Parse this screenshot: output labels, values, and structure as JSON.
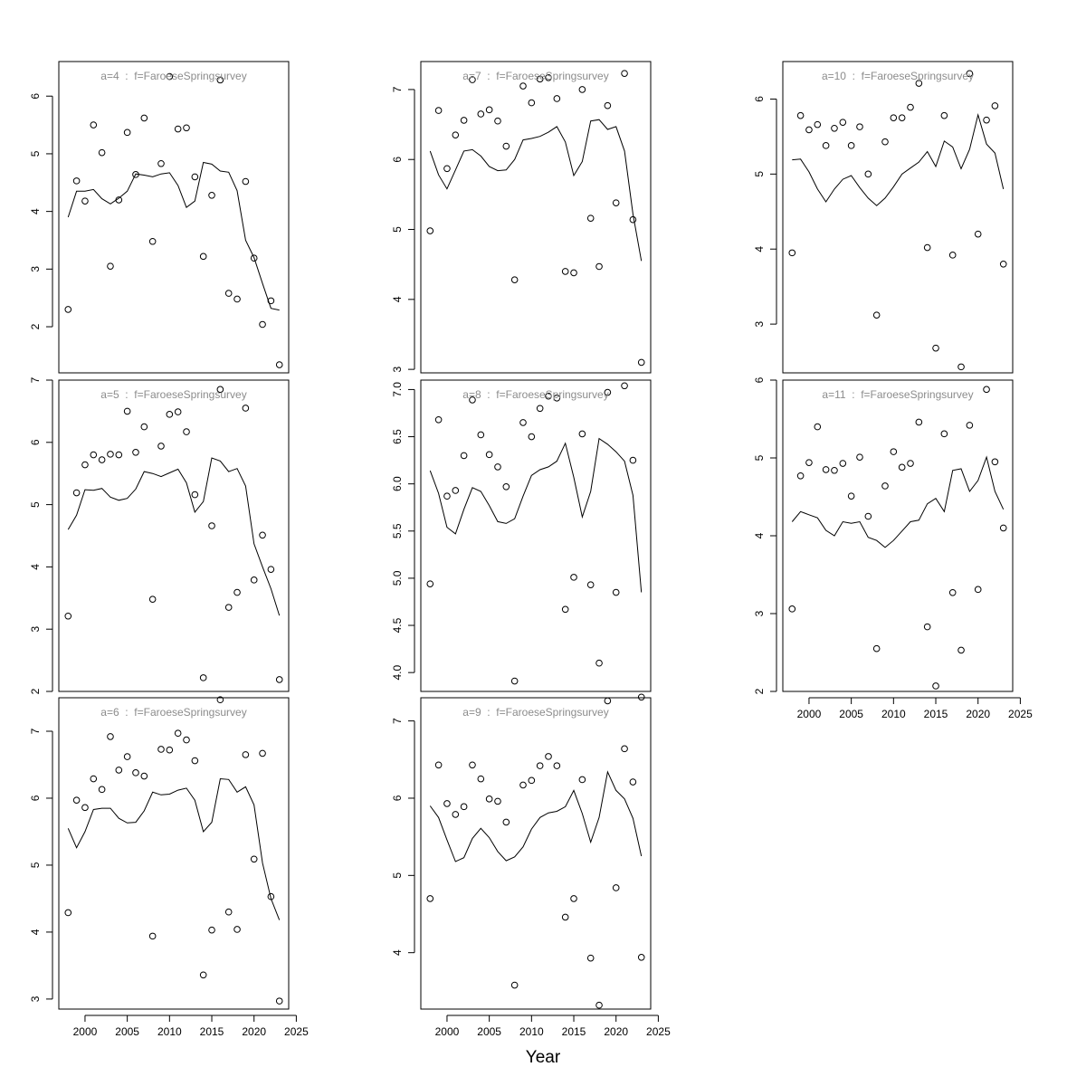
{
  "xlabel": "Year",
  "colors": {
    "panel_title": "#8c8c8c",
    "axis": "#000000",
    "line": "#000000",
    "points": "#000000"
  },
  "chart_data": [
    {
      "type": "scatter",
      "title": "a=4  :  f=FaroeseSpringsurvey",
      "x_ticks": [
        2000,
        2005,
        2010,
        2015,
        2020,
        2025
      ],
      "y_ticks": [
        2,
        3,
        4,
        5,
        6
      ],
      "ylim": [
        1.2,
        6.6
      ],
      "show_x_axis": false,
      "observed": {
        "x": [
          1998,
          1999,
          2000,
          2001,
          2002,
          2003,
          2004,
          2005,
          2006,
          2007,
          2008,
          2009,
          2010,
          2011,
          2012,
          2013,
          2014,
          2015,
          2016,
          2017,
          2018,
          2019,
          2020,
          2021,
          2022,
          2023
        ],
        "y": [
          2.3,
          4.53,
          4.18,
          5.5,
          5.02,
          3.05,
          4.2,
          5.37,
          4.64,
          5.62,
          3.48,
          4.83,
          6.34,
          5.43,
          5.45,
          4.6,
          3.22,
          4.28,
          6.28,
          2.58,
          2.48,
          4.52,
          3.19,
          2.04,
          2.45,
          1.34
        ]
      },
      "fitted": {
        "x": [
          1998,
          1999,
          2000,
          2001,
          2002,
          2003,
          2004,
          2005,
          2006,
          2007,
          2008,
          2009,
          2010,
          2011,
          2012,
          2013,
          2014,
          2015,
          2016,
          2017,
          2018,
          2019,
          2020,
          2021,
          2022,
          2023
        ],
        "y": [
          3.9,
          4.35,
          4.35,
          4.38,
          4.22,
          4.13,
          4.23,
          4.35,
          4.65,
          4.63,
          4.6,
          4.65,
          4.67,
          4.45,
          4.07,
          4.18,
          4.85,
          4.82,
          4.7,
          4.68,
          4.36,
          3.5,
          3.2,
          2.75,
          2.32,
          2.29
        ]
      }
    },
    {
      "type": "scatter",
      "title": "a=7  :  f=FaroeseSpringsurvey",
      "x_ticks": [
        2000,
        2005,
        2010,
        2015,
        2020,
        2025
      ],
      "y_ticks": [
        3,
        4,
        5,
        6,
        7
      ],
      "ylim": [
        2.95,
        7.4
      ],
      "show_x_axis": false,
      "observed": {
        "x": [
          1998,
          1999,
          2000,
          2001,
          2002,
          2003,
          2004,
          2005,
          2006,
          2007,
          2008,
          2009,
          2010,
          2011,
          2012,
          2013,
          2014,
          2015,
          2016,
          2017,
          2018,
          2019,
          2020,
          2021,
          2022,
          2023
        ],
        "y": [
          4.98,
          6.7,
          5.87,
          6.35,
          6.56,
          7.14,
          6.65,
          6.71,
          6.55,
          6.19,
          4.28,
          7.05,
          6.81,
          7.15,
          7.17,
          6.87,
          4.4,
          4.38,
          7.0,
          5.16,
          4.47,
          6.77,
          5.38,
          7.23,
          5.14,
          3.1
        ]
      },
      "fitted": {
        "x": [
          1998,
          1999,
          2000,
          2001,
          2002,
          2003,
          2004,
          2005,
          2006,
          2007,
          2008,
          2009,
          2010,
          2011,
          2012,
          2013,
          2014,
          2015,
          2016,
          2017,
          2018,
          2019,
          2020,
          2021,
          2022,
          2023
        ],
        "y": [
          6.12,
          5.78,
          5.58,
          5.85,
          6.12,
          6.14,
          6.05,
          5.9,
          5.84,
          5.85,
          6.0,
          6.28,
          6.3,
          6.33,
          6.39,
          6.47,
          6.25,
          5.77,
          5.97,
          6.55,
          6.57,
          6.43,
          6.47,
          6.12,
          5.22,
          4.55
        ]
      }
    },
    {
      "type": "scatter",
      "title": "a=10  :  f=FaroeseSpringsurvey",
      "x_ticks": [
        2000,
        2005,
        2010,
        2015,
        2020,
        2025
      ],
      "y_ticks": [
        3,
        4,
        5,
        6
      ],
      "ylim": [
        2.35,
        6.5
      ],
      "show_x_axis": false,
      "observed": {
        "x": [
          1998,
          1999,
          2000,
          2001,
          2002,
          2003,
          2004,
          2005,
          2006,
          2007,
          2008,
          2009,
          2010,
          2011,
          2012,
          2013,
          2014,
          2015,
          2016,
          2017,
          2018,
          2019,
          2020,
          2021,
          2022,
          2023
        ],
        "y": [
          3.95,
          5.78,
          5.59,
          5.66,
          5.38,
          5.61,
          5.69,
          5.38,
          5.63,
          5.0,
          3.12,
          5.43,
          5.75,
          5.75,
          5.89,
          6.21,
          4.02,
          2.68,
          5.78,
          3.92,
          2.43,
          6.34,
          4.2,
          5.72,
          5.91,
          3.8
        ]
      },
      "fitted": {
        "x": [
          1998,
          1999,
          2000,
          2001,
          2002,
          2003,
          2004,
          2005,
          2006,
          2007,
          2008,
          2009,
          2010,
          2011,
          2012,
          2013,
          2014,
          2015,
          2016,
          2017,
          2018,
          2019,
          2020,
          2021,
          2022,
          2023
        ],
        "y": [
          5.19,
          5.2,
          5.03,
          4.8,
          4.63,
          4.8,
          4.93,
          4.98,
          4.82,
          4.68,
          4.58,
          4.68,
          4.83,
          5.0,
          5.08,
          5.16,
          5.3,
          5.1,
          5.44,
          5.36,
          5.07,
          5.33,
          5.79,
          5.4,
          5.28,
          4.8
        ]
      }
    },
    {
      "type": "scatter",
      "title": "a=5  :  f=FaroeseSpringsurvey",
      "x_ticks": [
        2000,
        2005,
        2010,
        2015,
        2020,
        2025
      ],
      "y_ticks": [
        2,
        3,
        4,
        5,
        6,
        7
      ],
      "ylim": [
        2.0,
        7.0
      ],
      "show_x_axis": false,
      "observed": {
        "x": [
          1998,
          1999,
          2000,
          2001,
          2002,
          2003,
          2004,
          2005,
          2006,
          2007,
          2008,
          2009,
          2010,
          2011,
          2012,
          2013,
          2014,
          2015,
          2016,
          2017,
          2018,
          2019,
          2020,
          2021,
          2022,
          2023
        ],
        "y": [
          3.21,
          5.19,
          5.64,
          5.8,
          5.72,
          5.81,
          5.8,
          6.5,
          5.84,
          6.25,
          3.48,
          5.94,
          6.45,
          6.49,
          6.17,
          5.16,
          2.22,
          4.66,
          6.85,
          3.35,
          3.59,
          6.55,
          3.79,
          4.51,
          3.96,
          2.19
        ]
      },
      "fitted": {
        "x": [
          1998,
          1999,
          2000,
          2001,
          2002,
          2003,
          2004,
          2005,
          2006,
          2007,
          2008,
          2009,
          2010,
          2011,
          2012,
          2013,
          2014,
          2015,
          2016,
          2017,
          2018,
          2019,
          2020,
          2021,
          2022,
          2023
        ],
        "y": [
          4.6,
          4.83,
          5.24,
          5.23,
          5.26,
          5.12,
          5.07,
          5.1,
          5.25,
          5.53,
          5.5,
          5.45,
          5.51,
          5.57,
          5.35,
          4.88,
          5.05,
          5.75,
          5.7,
          5.53,
          5.58,
          5.3,
          4.37,
          4.0,
          3.65,
          3.22
        ]
      }
    },
    {
      "type": "scatter",
      "title": "a=8  :  f=FaroeseSpringsurvey",
      "x_ticks": [
        2000,
        2005,
        2010,
        2015,
        2020,
        2025
      ],
      "y_ticks": [
        4.0,
        4.5,
        5.0,
        5.5,
        6.0,
        6.5,
        7.0
      ],
      "ylim": [
        3.8,
        7.1
      ],
      "show_x_axis": false,
      "observed": {
        "x": [
          1998,
          1999,
          2000,
          2001,
          2002,
          2003,
          2004,
          2005,
          2006,
          2007,
          2008,
          2009,
          2010,
          2011,
          2012,
          2013,
          2014,
          2015,
          2016,
          2017,
          2018,
          2019,
          2020,
          2021,
          2022,
          2023
        ],
        "y": [
          4.94,
          6.68,
          5.87,
          5.93,
          6.3,
          6.89,
          6.52,
          6.31,
          6.18,
          5.97,
          3.91,
          6.65,
          6.5,
          6.8,
          6.93,
          6.91,
          4.67,
          5.01,
          6.53,
          4.93,
          4.1,
          6.97,
          4.85,
          7.04,
          6.25,
          3.74
        ]
      },
      "fitted": {
        "x": [
          1998,
          1999,
          2000,
          2001,
          2002,
          2003,
          2004,
          2005,
          2006,
          2007,
          2008,
          2009,
          2010,
          2011,
          2012,
          2013,
          2014,
          2015,
          2016,
          2017,
          2018,
          2019,
          2020,
          2021,
          2022,
          2023
        ],
        "y": [
          6.14,
          5.9,
          5.54,
          5.47,
          5.73,
          5.96,
          5.92,
          5.77,
          5.6,
          5.58,
          5.63,
          5.87,
          6.09,
          6.15,
          6.18,
          6.24,
          6.43,
          6.07,
          5.65,
          5.92,
          6.48,
          6.42,
          6.34,
          6.24,
          5.88,
          4.85
        ]
      }
    },
    {
      "type": "scatter",
      "title": "a=11  :  f=FaroeseSpringsurvey",
      "x_ticks": [
        2000,
        2005,
        2010,
        2015,
        2020,
        2025
      ],
      "y_ticks": [
        2,
        3,
        4,
        5,
        6
      ],
      "ylim": [
        2.0,
        6.0
      ],
      "show_x_axis": true,
      "observed": {
        "x": [
          1998,
          1999,
          2000,
          2001,
          2002,
          2003,
          2004,
          2005,
          2006,
          2007,
          2008,
          2009,
          2010,
          2011,
          2012,
          2013,
          2014,
          2015,
          2016,
          2017,
          2018,
          2019,
          2020,
          2021,
          2022,
          2023
        ],
        "y": [
          3.06,
          4.77,
          4.94,
          5.4,
          4.85,
          4.84,
          4.93,
          4.51,
          5.01,
          4.25,
          2.55,
          4.64,
          5.08,
          4.88,
          4.93,
          5.46,
          2.83,
          2.07,
          5.31,
          3.27,
          2.53,
          5.42,
          3.31,
          5.88,
          4.95,
          4.1
        ]
      },
      "fitted": {
        "x": [
          1998,
          1999,
          2000,
          2001,
          2002,
          2003,
          2004,
          2005,
          2006,
          2007,
          2008,
          2009,
          2010,
          2011,
          2012,
          2013,
          2014,
          2015,
          2016,
          2017,
          2018,
          2019,
          2020,
          2021,
          2022,
          2023
        ],
        "y": [
          4.18,
          4.31,
          4.27,
          4.23,
          4.07,
          4.0,
          4.18,
          4.16,
          4.18,
          3.98,
          3.94,
          3.85,
          3.94,
          4.06,
          4.18,
          4.2,
          4.41,
          4.48,
          4.31,
          4.84,
          4.86,
          4.57,
          4.71,
          5.01,
          4.57,
          4.34
        ]
      }
    },
    {
      "type": "scatter",
      "title": "a=6  :  f=FaroeseSpringsurvey",
      "x_ticks": [
        2000,
        2005,
        2010,
        2015,
        2020,
        2025
      ],
      "y_ticks": [
        3,
        4,
        5,
        6,
        7
      ],
      "ylim": [
        2.85,
        7.5
      ],
      "show_x_axis": true,
      "observed": {
        "x": [
          1998,
          1999,
          2000,
          2001,
          2002,
          2003,
          2004,
          2005,
          2006,
          2007,
          2008,
          2009,
          2010,
          2011,
          2012,
          2013,
          2014,
          2015,
          2016,
          2017,
          2018,
          2019,
          2020,
          2021,
          2022,
          2023
        ],
        "y": [
          4.29,
          5.97,
          5.86,
          6.29,
          6.13,
          6.92,
          6.42,
          6.62,
          6.38,
          6.33,
          3.94,
          6.73,
          6.72,
          6.97,
          6.87,
          6.56,
          3.36,
          4.03,
          7.47,
          4.3,
          4.04,
          6.65,
          5.09,
          6.67,
          4.53,
          2.97
        ]
      },
      "fitted": {
        "x": [
          1998,
          1999,
          2000,
          2001,
          2002,
          2003,
          2004,
          2005,
          2006,
          2007,
          2008,
          2009,
          2010,
          2011,
          2012,
          2013,
          2014,
          2015,
          2016,
          2017,
          2018,
          2019,
          2020,
          2021,
          2022,
          2023
        ],
        "y": [
          5.55,
          5.26,
          5.5,
          5.83,
          5.85,
          5.85,
          5.7,
          5.63,
          5.64,
          5.81,
          6.09,
          6.05,
          6.06,
          6.12,
          6.15,
          5.97,
          5.5,
          5.64,
          6.29,
          6.28,
          6.09,
          6.17,
          5.9,
          5.03,
          4.5,
          4.18
        ]
      }
    },
    {
      "type": "scatter",
      "title": "a=9  :  f=FaroeseSpringsurvey",
      "x_ticks": [
        2000,
        2005,
        2010,
        2015,
        2020,
        2025
      ],
      "y_ticks": [
        4,
        5,
        6,
        7
      ],
      "ylim": [
        3.27,
        7.3
      ],
      "show_x_axis": true,
      "observed": {
        "x": [
          1998,
          1999,
          2000,
          2001,
          2002,
          2003,
          2004,
          2005,
          2006,
          2007,
          2008,
          2009,
          2010,
          2011,
          2012,
          2013,
          2014,
          2015,
          2016,
          2017,
          2018,
          2019,
          2020,
          2021,
          2022,
          2023
        ],
        "y": [
          4.7,
          6.43,
          5.93,
          5.79,
          5.89,
          6.43,
          6.25,
          5.99,
          5.96,
          5.69,
          3.58,
          6.17,
          6.23,
          6.42,
          6.54,
          6.42,
          4.46,
          4.7,
          6.24,
          3.93,
          3.32,
          7.26,
          4.84,
          6.64,
          6.21,
          3.94
        ]
      },
      "fitted": {
        "x": [
          1998,
          1999,
          2000,
          2001,
          2002,
          2003,
          2004,
          2005,
          2006,
          2007,
          2008,
          2009,
          2010,
          2011,
          2012,
          2013,
          2014,
          2015,
          2016,
          2017,
          2018,
          2019,
          2020,
          2021,
          2022,
          2023
        ],
        "y": [
          5.9,
          5.75,
          5.46,
          5.18,
          5.23,
          5.48,
          5.61,
          5.49,
          5.31,
          5.19,
          5.24,
          5.37,
          5.6,
          5.75,
          5.81,
          5.83,
          5.89,
          6.1,
          5.8,
          5.43,
          5.75,
          6.34,
          6.1,
          5.99,
          5.74,
          5.25
        ]
      }
    }
  ]
}
